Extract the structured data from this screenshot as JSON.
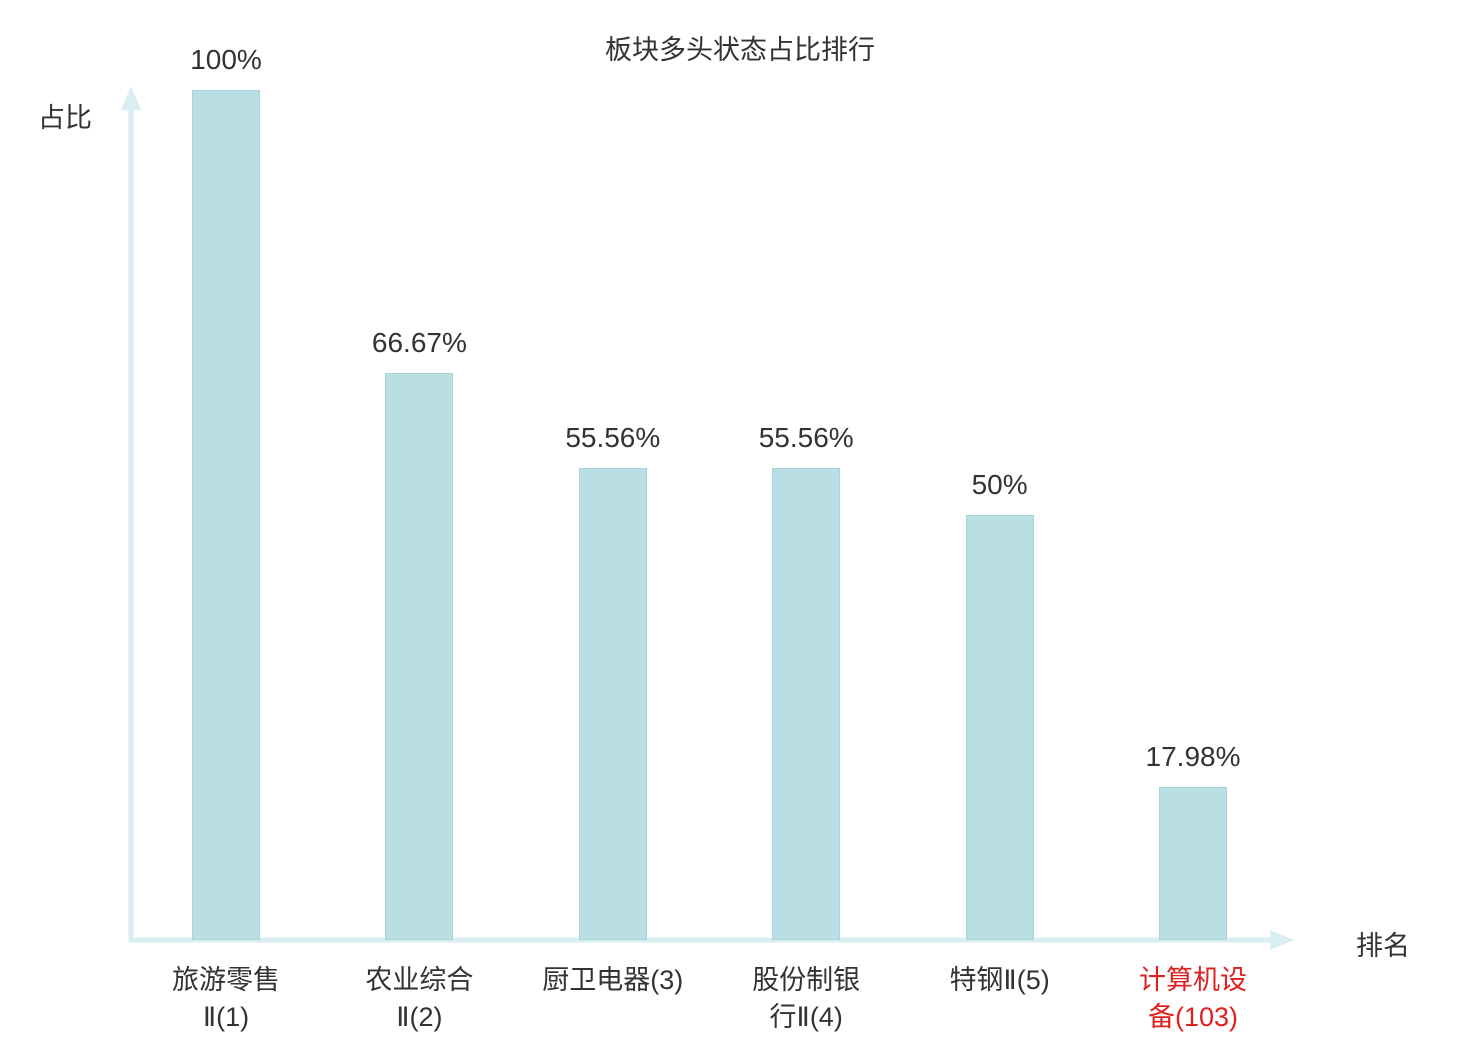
{
  "title": "板块多头状态占比排行",
  "axes": {
    "y_label": "占比",
    "x_label": "排名"
  },
  "colors": {
    "bar_fill": "#b9dee4",
    "bar_border": "#a9d3da",
    "axis": "#d9eef0",
    "text": "#333333",
    "highlight": "#e01f1f"
  },
  "chart_data": {
    "type": "bar",
    "title": "板块多头状态占比排行",
    "xlabel": "排名",
    "ylabel": "占比",
    "ylim": [
      0,
      100
    ],
    "grid": false,
    "legend": "none",
    "categories": [
      "旅游零售Ⅱ(1)",
      "农业综合Ⅱ(2)",
      "厨卫电器(3)",
      "股份制银行Ⅱ(4)",
      "特钢Ⅱ(5)",
      "计算机设备(103)"
    ],
    "category_lines": [
      [
        "旅游零售",
        "Ⅱ(1)"
      ],
      [
        "农业综合",
        "Ⅱ(2)"
      ],
      [
        "厨卫电器(3)"
      ],
      [
        "股份制银",
        "行Ⅱ(4)"
      ],
      [
        "特钢Ⅱ(5)"
      ],
      [
        "计算机设",
        "备(103)"
      ]
    ],
    "values": [
      100,
      66.67,
      55.56,
      55.56,
      50,
      17.98
    ],
    "value_labels": [
      "100%",
      "66.67%",
      "55.56%",
      "55.56%",
      "50%",
      "17.98%"
    ],
    "highlighted_index": 5
  }
}
